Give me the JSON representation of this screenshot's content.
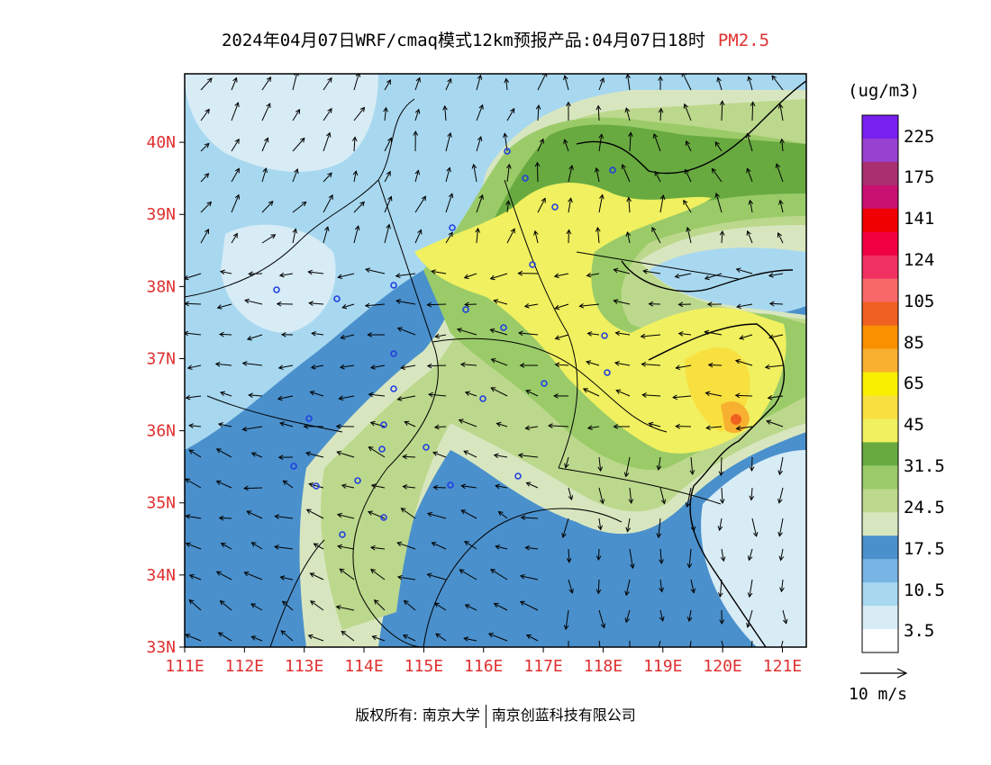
{
  "title": {
    "main": "2024年04月07日WRF/cmaq模式12km预报产品:04月07日18时",
    "pollutant": "PM2.5"
  },
  "map": {
    "lat_labels": [
      "40N",
      "39N",
      "38N",
      "37N",
      "36N",
      "35N",
      "34N",
      "33N"
    ],
    "lon_labels": [
      "111E",
      "112E",
      "113E",
      "114E",
      "115E",
      "116E",
      "117E",
      "118E",
      "119E",
      "120E",
      "121E"
    ],
    "lon_range": [
      111,
      121.4
    ],
    "lat_range": [
      33,
      40.95
    ],
    "frame_color": "#000000"
  },
  "legend": {
    "units": "(ug/m3)",
    "colors": [
      "#ffffff",
      "#d8ecf6",
      "#a8d8f0",
      "#78b4e4",
      "#4a90cc",
      "#d8e6c0",
      "#bcd88c",
      "#9acb68",
      "#68aa40",
      "#f0f060",
      "#f8e040",
      "#f8f000",
      "#f8b030",
      "#f89000",
      "#f06020",
      "#f86868",
      "#f03060",
      "#f00040",
      "#f00000",
      "#c81070",
      "#a83070",
      "#9840d0",
      "#7820f0"
    ],
    "labels": [
      "3.5",
      "10.5",
      "17.5",
      "24.5",
      "31.5",
      "45",
      "65",
      "85",
      "105",
      "124",
      "141",
      "175",
      "225"
    ]
  },
  "wind_scale": {
    "label": "10 m/s"
  },
  "copyright": {
    "prefix": "版权所有:",
    "org1": "南京大学",
    "org2": "南京创蓝科技有限公司"
  },
  "colors": {
    "axis_labels": "#e03030",
    "city_markers": "#2040e0"
  }
}
